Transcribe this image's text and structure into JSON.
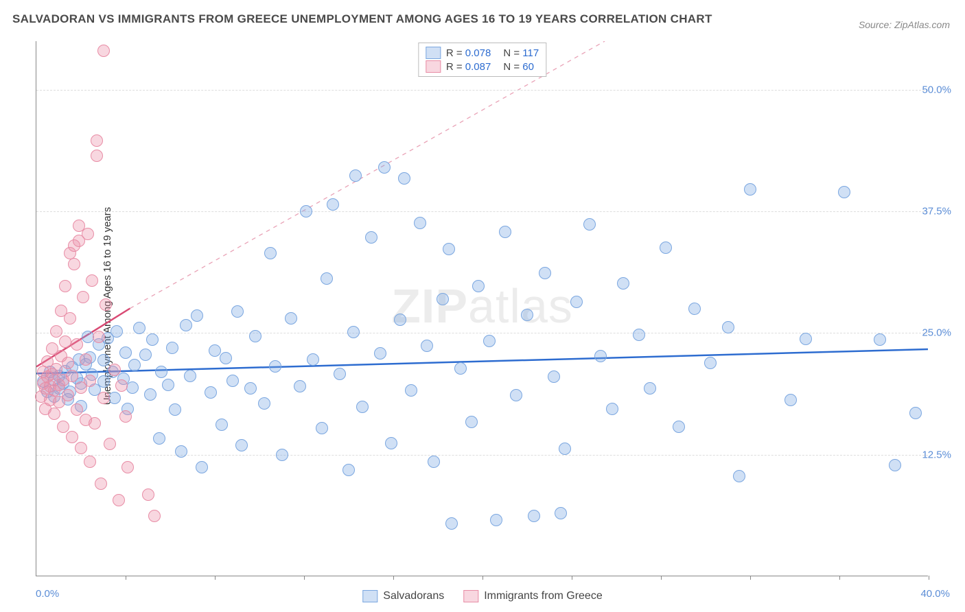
{
  "title": "SALVADORAN VS IMMIGRANTS FROM GREECE UNEMPLOYMENT AMONG AGES 16 TO 19 YEARS CORRELATION CHART",
  "source": "Source: ZipAtlas.com",
  "y_axis_label": "Unemployment Among Ages 16 to 19 years",
  "watermark_bold": "ZIP",
  "watermark_light": "atlas",
  "chart": {
    "type": "scatter",
    "xlim": [
      0,
      40
    ],
    "ylim": [
      0,
      55
    ],
    "x_origin_label": "0.0%",
    "x_max_label": "40.0%",
    "y_ticks": [
      {
        "v": 12.5,
        "label": "12.5%"
      },
      {
        "v": 25.0,
        "label": "25.0%"
      },
      {
        "v": 37.5,
        "label": "37.5%"
      },
      {
        "v": 50.0,
        "label": "50.0%"
      }
    ],
    "x_tick_positions": [
      4,
      8,
      12,
      16,
      20,
      24,
      28,
      32,
      36,
      40
    ],
    "background_color": "#ffffff",
    "grid_color": "#dddddd",
    "point_radius": 9,
    "series": [
      {
        "name": "Salvadorans",
        "fill": "rgba(120,165,225,0.35)",
        "stroke": "#7aa6e0",
        "r_value": "0.078",
        "n_value": "117",
        "trend": {
          "x1": 0,
          "y1": 20.8,
          "x2": 40,
          "y2": 23.3,
          "color": "#2d6cd0",
          "width": 2.5,
          "dash": "none"
        },
        "dash_extend": null,
        "points": [
          [
            0.3,
            20
          ],
          [
            0.5,
            19
          ],
          [
            0.6,
            21
          ],
          [
            0.8,
            18.5
          ],
          [
            0.8,
            20.2
          ],
          [
            1.0,
            19.3
          ],
          [
            1.0,
            20.6
          ],
          [
            1.2,
            19.8
          ],
          [
            1.3,
            21.1
          ],
          [
            1.4,
            18.2
          ],
          [
            1.5,
            19
          ],
          [
            1.6,
            21.5
          ],
          [
            1.8,
            20.4
          ],
          [
            1.9,
            22.3
          ],
          [
            2.0,
            17.5
          ],
          [
            2.0,
            19.8
          ],
          [
            2.2,
            21.8
          ],
          [
            2.3,
            24.6
          ],
          [
            2.4,
            22.5
          ],
          [
            2.5,
            20.7
          ],
          [
            2.6,
            19.2
          ],
          [
            2.8,
            23.8
          ],
          [
            3.0,
            22.2
          ],
          [
            3.0,
            20.0
          ],
          [
            3.2,
            24.5
          ],
          [
            3.4,
            21
          ],
          [
            3.5,
            18.3
          ],
          [
            3.6,
            25.2
          ],
          [
            3.9,
            20.3
          ],
          [
            4.0,
            23
          ],
          [
            4.1,
            17.2
          ],
          [
            4.3,
            19.4
          ],
          [
            4.4,
            21.7
          ],
          [
            4.6,
            25.5
          ],
          [
            4.9,
            22.8
          ],
          [
            5.1,
            18.7
          ],
          [
            5.2,
            24.3
          ],
          [
            5.5,
            14.2
          ],
          [
            5.6,
            21
          ],
          [
            5.9,
            19.7
          ],
          [
            6.1,
            23.5
          ],
          [
            6.2,
            17.1
          ],
          [
            6.5,
            12.8
          ],
          [
            6.7,
            25.8
          ],
          [
            6.9,
            20.6
          ],
          [
            7.2,
            26.8
          ],
          [
            7.4,
            11.2
          ],
          [
            7.8,
            18.9
          ],
          [
            8.0,
            23.2
          ],
          [
            8.3,
            15.6
          ],
          [
            8.5,
            22.4
          ],
          [
            8.8,
            20.1
          ],
          [
            9.0,
            27.2
          ],
          [
            9.2,
            13.5
          ],
          [
            9.6,
            19.3
          ],
          [
            9.8,
            24.7
          ],
          [
            10.2,
            17.8
          ],
          [
            10.5,
            33.2
          ],
          [
            10.7,
            21.6
          ],
          [
            11.0,
            12.5
          ],
          [
            11.4,
            26.5
          ],
          [
            11.8,
            19.5
          ],
          [
            12.1,
            37.5
          ],
          [
            12.4,
            22.3
          ],
          [
            12.8,
            15.2
          ],
          [
            13.0,
            30.6
          ],
          [
            13.3,
            38.2
          ],
          [
            13.6,
            20.8
          ],
          [
            14.0,
            10.9
          ],
          [
            14.2,
            25.1
          ],
          [
            14.3,
            41.2
          ],
          [
            14.6,
            17.4
          ],
          [
            15.0,
            34.8
          ],
          [
            15.4,
            22.9
          ],
          [
            15.6,
            42
          ],
          [
            15.9,
            13.7
          ],
          [
            16.3,
            26.4
          ],
          [
            16.5,
            40.9
          ],
          [
            16.8,
            19.1
          ],
          [
            17.2,
            36.3
          ],
          [
            17.5,
            23.7
          ],
          [
            17.8,
            11.8
          ],
          [
            18.2,
            28.5
          ],
          [
            18.5,
            33.6
          ],
          [
            18.6,
            5.4
          ],
          [
            19.0,
            21.4
          ],
          [
            19.5,
            15.9
          ],
          [
            19.8,
            29.8
          ],
          [
            20.3,
            24.2
          ],
          [
            20.6,
            5.8
          ],
          [
            21.0,
            35.4
          ],
          [
            21.5,
            18.6
          ],
          [
            22.0,
            26.9
          ],
          [
            22.3,
            6.2
          ],
          [
            22.8,
            31.2
          ],
          [
            23.2,
            20.5
          ],
          [
            23.5,
            6.5
          ],
          [
            23.7,
            13.1
          ],
          [
            24.2,
            28.2
          ],
          [
            24.8,
            36.2
          ],
          [
            25.3,
            22.6
          ],
          [
            25.8,
            17.2
          ],
          [
            26.3,
            30.1
          ],
          [
            27.0,
            24.8
          ],
          [
            27.5,
            19.3
          ],
          [
            28.2,
            33.8
          ],
          [
            28.8,
            15.4
          ],
          [
            29.5,
            27.5
          ],
          [
            30.2,
            21.9
          ],
          [
            31.0,
            25.6
          ],
          [
            31.5,
            10.3
          ],
          [
            32.0,
            39.8
          ],
          [
            33.8,
            18.1
          ],
          [
            34.5,
            24.4
          ],
          [
            36.2,
            39.5
          ],
          [
            37.8,
            24.3
          ],
          [
            38.5,
            11.4
          ],
          [
            39.4,
            16.8
          ]
        ]
      },
      {
        "name": "Immigrants from Greece",
        "fill": "rgba(235,140,165,0.35)",
        "stroke": "#e88ca5",
        "r_value": "0.087",
        "n_value": "60",
        "trend": {
          "x1": 0,
          "y1": 21.5,
          "x2": 4.2,
          "y2": 27.5,
          "color": "#d94a74",
          "width": 2.5,
          "dash": "none"
        },
        "dash_extend": {
          "x1": 4.2,
          "y1": 27.5,
          "x2": 25.5,
          "y2": 55,
          "color": "#e9a2b6",
          "width": 1.3,
          "dash": "6,6"
        },
        "points": [
          [
            0.2,
            18.5
          ],
          [
            0.3,
            19.8
          ],
          [
            0.3,
            21
          ],
          [
            0.4,
            17.2
          ],
          [
            0.4,
            19.3
          ],
          [
            0.5,
            20.5
          ],
          [
            0.5,
            22.1
          ],
          [
            0.6,
            18.1
          ],
          [
            0.6,
            19.5
          ],
          [
            0.7,
            20.8
          ],
          [
            0.7,
            23.4
          ],
          [
            0.8,
            16.7
          ],
          [
            0.8,
            19.1
          ],
          [
            0.9,
            21.3
          ],
          [
            0.9,
            25.2
          ],
          [
            1.0,
            17.9
          ],
          [
            1.0,
            19.7
          ],
          [
            1.1,
            22.6
          ],
          [
            1.1,
            27.3
          ],
          [
            1.2,
            15.4
          ],
          [
            1.2,
            20.2
          ],
          [
            1.3,
            24.1
          ],
          [
            1.3,
            29.8
          ],
          [
            1.4,
            18.6
          ],
          [
            1.4,
            21.9
          ],
          [
            1.5,
            26.5
          ],
          [
            1.5,
            33.2
          ],
          [
            1.6,
            14.3
          ],
          [
            1.6,
            20.6
          ],
          [
            1.7,
            32.1
          ],
          [
            1.7,
            34
          ],
          [
            1.8,
            17.1
          ],
          [
            1.8,
            23.8
          ],
          [
            1.9,
            34.5
          ],
          [
            1.9,
            36
          ],
          [
            2.0,
            13.2
          ],
          [
            2.0,
            19.4
          ],
          [
            2.1,
            28.7
          ],
          [
            2.2,
            16.1
          ],
          [
            2.2,
            22.3
          ],
          [
            2.3,
            35.2
          ],
          [
            2.4,
            11.8
          ],
          [
            2.4,
            20.1
          ],
          [
            2.5,
            30.4
          ],
          [
            2.6,
            15.7
          ],
          [
            2.7,
            44.8
          ],
          [
            2.7,
            43.2
          ],
          [
            2.8,
            24.6
          ],
          [
            2.9,
            9.5
          ],
          [
            3.0,
            18.3
          ],
          [
            3.0,
            54
          ],
          [
            3.1,
            27.9
          ],
          [
            3.3,
            13.6
          ],
          [
            3.5,
            21.2
          ],
          [
            3.7,
            7.8
          ],
          [
            3.8,
            19.6
          ],
          [
            4.0,
            16.4
          ],
          [
            4.1,
            11.2
          ],
          [
            5.0,
            8.4
          ],
          [
            5.3,
            6.2
          ]
        ]
      }
    ],
    "legend_top_labels": {
      "r_prefix": "R =",
      "n_prefix": "N ="
    },
    "value_color": "#2d6cd0",
    "label_color": "#444444"
  }
}
